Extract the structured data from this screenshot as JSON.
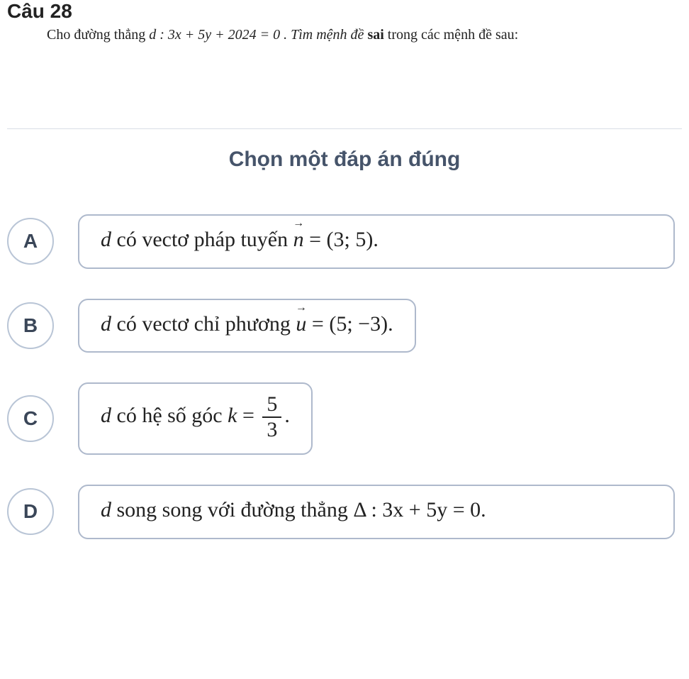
{
  "question_number": "Câu 28",
  "prompt_prefix": "Cho đường thẳng ",
  "prompt_var": "d",
  "prompt_eq": " : 3x + 5y + 2024 = 0 . Tìm mệnh đề ",
  "prompt_bold": "sai",
  "prompt_suffix": " trong các mệnh đề sau:",
  "instruction": "Chọn một đáp án đúng",
  "options": {
    "A": {
      "letter": "A",
      "lead": "d",
      "text_before": "  có vectơ pháp tuyến ",
      "vec": "n",
      "text_after": " = (3; 5).",
      "full_width": true
    },
    "B": {
      "letter": "B",
      "lead": "d",
      "text_before": "  có vectơ chỉ phương ",
      "vec": "u",
      "text_after": " = (5; −3).",
      "full_width": false
    },
    "C": {
      "letter": "C",
      "lead": "d",
      "text_before": "  có hệ số góc ",
      "k": "k",
      "eq": " = ",
      "num": "5",
      "den": "3",
      "period": ".",
      "full_width": false
    },
    "D": {
      "letter": "D",
      "lead": "d",
      "text_before": "  song song với đường thẳng ",
      "delta_eq": "Δ : 3x + 5y = 0.",
      "full_width": true
    }
  },
  "style": {
    "background": "#ffffff",
    "letter_border": "#b9c5d6",
    "box_border": "#aeb9cc",
    "instruction_color": "#46546a"
  }
}
